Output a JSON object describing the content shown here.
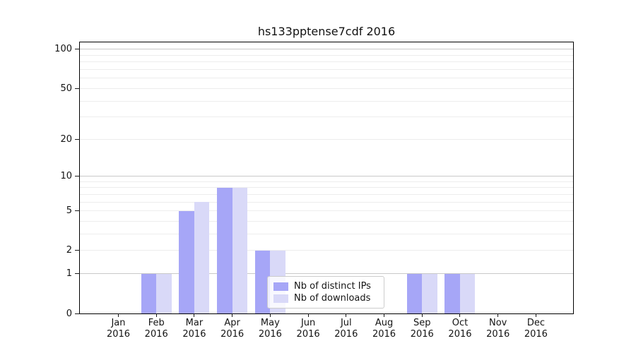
{
  "chart_data": {
    "type": "bar",
    "title": "hs133pptense7cdf 2016",
    "x_year": "2016",
    "categories": [
      "Jan",
      "Feb",
      "Mar",
      "Apr",
      "May",
      "Jun",
      "Jul",
      "Aug",
      "Sep",
      "Oct",
      "Nov",
      "Dec"
    ],
    "series": [
      {
        "name": "Nb of distinct IPs",
        "color": "#a6a6f7",
        "values": [
          0,
          1,
          5,
          8,
          2,
          0,
          0,
          0,
          1,
          1,
          0,
          0
        ]
      },
      {
        "name": "Nb of downloads",
        "color": "#d9d9f8",
        "values": [
          0,
          1,
          6,
          8,
          2,
          0,
          0,
          0,
          1,
          1,
          0,
          0
        ]
      }
    ],
    "yscale": "log1p",
    "ylim": [
      0,
      113
    ],
    "ytick_labels": [
      "100",
      "50",
      "20",
      "10",
      "5",
      "2",
      "1",
      "0"
    ],
    "grid": true,
    "legend_position": "lower center"
  },
  "colors": {
    "grid_major": "#c9c9c9",
    "grid_minor": "#ededed",
    "spine": "#000000",
    "background": "#ffffff"
  }
}
